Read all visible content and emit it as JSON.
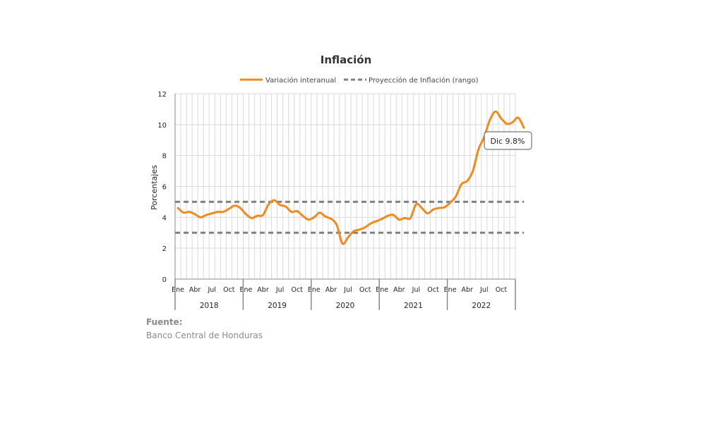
{
  "chart_data": {
    "type": "line",
    "title": "Inflación",
    "ylabel": "Porcentajes",
    "ylim": [
      0,
      12
    ],
    "yticks": [
      "0",
      "2",
      "4",
      "6",
      "8",
      "10",
      "12"
    ],
    "month_labels": [
      "Ene",
      "Abr",
      "Jul",
      "Oct"
    ],
    "years": [
      "2018",
      "2019",
      "2020",
      "2021",
      "2022"
    ],
    "grid": true,
    "legend_placement": "top",
    "series": [
      {
        "name": "Variación interanual",
        "color": "#F08A1C",
        "style": "solid",
        "values": [
          4.6,
          4.3,
          4.35,
          4.2,
          4.0,
          4.15,
          4.25,
          4.35,
          4.35,
          4.55,
          4.75,
          4.6,
          4.2,
          3.95,
          4.1,
          4.15,
          4.85,
          5.1,
          4.8,
          4.7,
          4.35,
          4.4,
          4.1,
          3.85,
          4.0,
          4.3,
          4.05,
          3.9,
          3.5,
          2.3,
          2.7,
          3.1,
          3.2,
          3.35,
          3.6,
          3.75,
          3.9,
          4.1,
          4.15,
          3.85,
          3.95,
          3.95,
          4.85,
          4.6,
          4.25,
          4.5,
          4.6,
          4.65,
          4.95,
          5.35,
          6.15,
          6.35,
          7.0,
          8.4,
          9.2,
          10.3,
          10.85,
          10.4,
          10.05,
          10.15,
          10.45,
          9.8
        ]
      },
      {
        "name": "Proyección de Inflación (rango)",
        "color": "#808080",
        "style": "dashed",
        "band": [
          3,
          5
        ]
      }
    ],
    "annotation": "Dic 9.8%"
  },
  "footer": {
    "source_label": "Fuente:",
    "source_text": "Banco Central de Honduras"
  }
}
